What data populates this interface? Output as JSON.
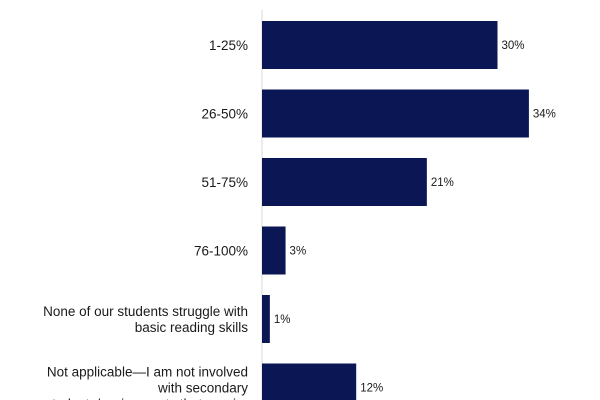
{
  "chart_data": {
    "type": "bar",
    "orientation": "horizontal",
    "categories": [
      [
        "1-25%"
      ],
      [
        "26-50%"
      ],
      [
        "51-75%"
      ],
      [
        "76-100%"
      ],
      [
        "None of our students struggle with",
        "basic reading skills"
      ],
      [
        "Not applicable—I am not involved",
        "with secondary",
        "students/assignments that require"
      ]
    ],
    "values": [
      30,
      34,
      21,
      3,
      1,
      12
    ],
    "value_labels": [
      "30%",
      "34%",
      "21%",
      "3%",
      "1%",
      "12%"
    ],
    "xlim": [
      0,
      42
    ],
    "bar_color": "#0b1654",
    "axis_color": "#d9d9d9",
    "grid": false,
    "legend": "none"
  }
}
